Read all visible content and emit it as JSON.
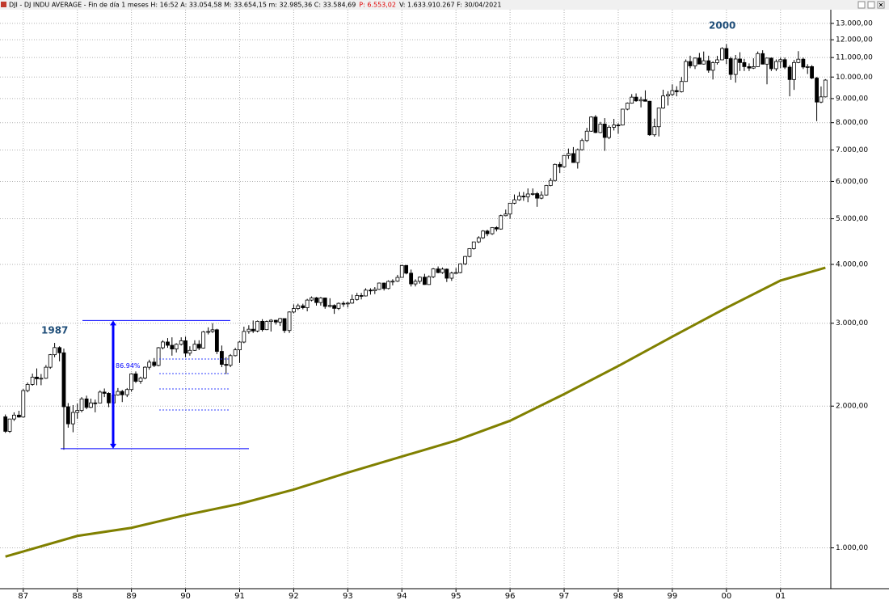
{
  "header": {
    "info": "DJI - DJ INDU AVERAGE - Fin de día 1 meses H: 16:52 A: 33.054,58 M: 33.654,15 m: 32.985,36 C: 33.584,69",
    "change": "P: 6.553,02",
    "extra": "V: 1.633.910.267 F: 30/04/2021"
  },
  "chart_data": {
    "type": "candlestick",
    "log_scale": true,
    "grid": true,
    "up_color": "#ffffff",
    "down_color": "#000000",
    "xlim": [
      1986.57,
      2001.93
    ],
    "ylim": [
      819,
      13900
    ],
    "xticks": [
      {
        "value": 1987,
        "label": "87"
      },
      {
        "value": 1988,
        "label": "88"
      },
      {
        "value": 1989,
        "label": "89"
      },
      {
        "value": 1990,
        "label": "90"
      },
      {
        "value": 1991,
        "label": "91"
      },
      {
        "value": 1992,
        "label": "92"
      },
      {
        "value": 1993,
        "label": "93"
      },
      {
        "value": 1994,
        "label": "94"
      },
      {
        "value": 1995,
        "label": "95"
      },
      {
        "value": 1996,
        "label": "96"
      },
      {
        "value": 1997,
        "label": "97"
      },
      {
        "value": 1998,
        "label": "98"
      },
      {
        "value": 1999,
        "label": "99"
      },
      {
        "value": 2000,
        "label": "00"
      },
      {
        "value": 2001,
        "label": "01"
      }
    ],
    "yticks": [
      {
        "value": 1000,
        "label": "1.000,00"
      },
      {
        "value": 2000,
        "label": "2.000,00"
      },
      {
        "value": 3000,
        "label": "3.000,00"
      },
      {
        "value": 4000,
        "label": "4.000,00"
      },
      {
        "value": 5000,
        "label": "5.000,00"
      },
      {
        "value": 6000,
        "label": "6.000,00"
      },
      {
        "value": 7000,
        "label": "7.000,00"
      },
      {
        "value": 8000,
        "label": "8.000,00"
      },
      {
        "value": 9000,
        "label": "9.000,00"
      },
      {
        "value": 10000,
        "label": "10.000,00"
      },
      {
        "value": 11000,
        "label": "11.000,00"
      },
      {
        "value": 12000,
        "label": "12.000,00"
      },
      {
        "value": 13000,
        "label": "13.000,00"
      }
    ],
    "x": [
      1986.67,
      1986.75,
      1986.83,
      1986.92,
      1987,
      1987.08,
      1987.17,
      1987.25,
      1987.33,
      1987.42,
      1987.5,
      1987.58,
      1987.67,
      1987.75,
      1987.83,
      1987.92,
      1988,
      1988.08,
      1988.17,
      1988.25,
      1988.33,
      1988.42,
      1988.5,
      1988.58,
      1988.67,
      1988.75,
      1988.83,
      1988.92,
      1989,
      1989.08,
      1989.17,
      1989.25,
      1989.33,
      1989.42,
      1989.5,
      1989.58,
      1989.67,
      1989.75,
      1989.83,
      1989.92,
      1990,
      1990.08,
      1990.17,
      1990.25,
      1990.33,
      1990.42,
      1990.5,
      1990.58,
      1990.67,
      1990.75,
      1990.83,
      1990.92,
      1991,
      1991.08,
      1991.17,
      1991.25,
      1991.33,
      1991.42,
      1991.5,
      1991.58,
      1991.67,
      1991.75,
      1991.83,
      1991.92,
      1992,
      1992.08,
      1992.17,
      1992.25,
      1992.33,
      1992.42,
      1992.5,
      1992.58,
      1992.67,
      1992.75,
      1992.83,
      1992.92,
      1993,
      1993.08,
      1993.17,
      1993.25,
      1993.33,
      1993.42,
      1993.5,
      1993.58,
      1993.67,
      1993.75,
      1993.83,
      1993.92,
      1994,
      1994.08,
      1994.17,
      1994.25,
      1994.33,
      1994.42,
      1994.5,
      1994.58,
      1994.67,
      1994.75,
      1994.83,
      1994.92,
      1995,
      1995.08,
      1995.17,
      1995.25,
      1995.33,
      1995.42,
      1995.5,
      1995.58,
      1995.67,
      1995.75,
      1995.83,
      1995.92,
      1996,
      1996.08,
      1996.17,
      1996.25,
      1996.33,
      1996.42,
      1996.5,
      1996.58,
      1996.67,
      1996.75,
      1996.83,
      1996.92,
      1997,
      1997.08,
      1997.17,
      1997.25,
      1997.33,
      1997.42,
      1997.5,
      1997.58,
      1997.67,
      1997.75,
      1997.83,
      1997.92,
      1998,
      1998.08,
      1998.17,
      1998.25,
      1998.33,
      1998.42,
      1998.5,
      1998.58,
      1998.67,
      1998.75,
      1998.83,
      1998.92,
      1999,
      1999.08,
      1999.17,
      1999.25,
      1999.33,
      1999.42,
      1999.5,
      1999.58,
      1999.67,
      1999.75,
      1999.83,
      1999.92,
      2000,
      2000.08,
      2000.17,
      2000.25,
      2000.33,
      2000.42,
      2000.5,
      2000.58,
      2000.67,
      2000.75,
      2000.83,
      2000.92,
      2001,
      2001.08,
      2001.17,
      2001.25,
      2001.33,
      2001.42,
      2001.5,
      2001.58,
      2001.67,
      2001.75,
      2001.83
    ],
    "open": [
      1898,
      1768,
      1878,
      1914,
      1896,
      2158,
      2224,
      2305,
      2286,
      2292,
      2419,
      2572,
      2663,
      2596,
      1994,
      1834,
      1939,
      1958,
      2072,
      1988,
      2032,
      2031,
      2142,
      2129,
      2032,
      2112,
      2149,
      2114,
      2169,
      2342,
      2258,
      2294,
      2419,
      2480,
      2440,
      2661,
      2737,
      2693,
      2645,
      2706,
      2753,
      2591,
      2627,
      2707,
      2657,
      2877,
      2881,
      2905,
      2614,
      2453,
      2442,
      2560,
      2634,
      2736,
      2882,
      2913,
      2888,
      3028,
      2907,
      3025,
      3044,
      3017,
      3069,
      2895,
      3169,
      3223,
      3267,
      3236,
      3359,
      3397,
      3319,
      3394,
      3257,
      3272,
      3226,
      3306,
      3301,
      3310,
      3370,
      3435,
      3428,
      3527,
      3516,
      3540,
      3651,
      3555,
      3681,
      3684,
      3754,
      3978,
      3832,
      3636,
      3682,
      3758,
      3625,
      3765,
      3913,
      3843,
      3908,
      3739,
      3834,
      3843,
      4011,
      4158,
      4321,
      4465,
      4556,
      4708,
      4647,
      4789,
      4756,
      5075,
      5117,
      5395,
      5486,
      5587,
      5569,
      5643,
      5655,
      5529,
      5616,
      5882,
      6029,
      6522,
      6448,
      6813,
      6878,
      6584,
      7009,
      7331,
      7673,
      8223,
      7622,
      7945,
      7442,
      7823,
      7908,
      7907,
      8546,
      8800,
      9063,
      8900,
      8952,
      8883,
      7539,
      7843,
      8592,
      9117,
      9181,
      9359,
      9307,
      9786,
      10789,
      10560,
      10971,
      10655,
      10829,
      10337,
      10729,
      10878,
      11497,
      10941,
      10128,
      10922,
      10734,
      10522,
      10448,
      10522,
      11215,
      10651,
      10971,
      10415,
      10788,
      10887,
      10495,
      9879,
      10735,
      10912,
      10502,
      10523,
      9950,
      8848,
      9075
    ],
    "high": [
      1920,
      1880,
      1940,
      1955,
      2175,
      2245,
      2345,
      2405,
      2340,
      2445,
      2580,
      2725,
      2680,
      2650,
      2030,
      2010,
      2025,
      2090,
      2105,
      2075,
      2065,
      2160,
      2180,
      2140,
      2125,
      2185,
      2165,
      2185,
      2350,
      2370,
      2310,
      2430,
      2510,
      2530,
      2670,
      2760,
      2790,
      2800,
      2720,
      2800,
      2810,
      2680,
      2760,
      2760,
      2890,
      2940,
      3000,
      2920,
      2690,
      2540,
      2580,
      2660,
      2750,
      2950,
      2970,
      3040,
      3040,
      3060,
      3040,
      3060,
      3050,
      3080,
      3070,
      3180,
      3290,
      3300,
      3300,
      3380,
      3420,
      3410,
      3410,
      3400,
      3390,
      3290,
      3320,
      3340,
      3330,
      3450,
      3480,
      3480,
      3560,
      3560,
      3580,
      3660,
      3660,
      3700,
      3720,
      3800,
      3990,
      3990,
      3900,
      3720,
      3770,
      3820,
      3790,
      3930,
      3960,
      3940,
      3920,
      3860,
      3930,
      4020,
      4170,
      4330,
      4470,
      4590,
      4730,
      4740,
      4800,
      4820,
      5100,
      5230,
      5400,
      5630,
      5700,
      5700,
      5800,
      5800,
      5700,
      5720,
      5900,
      6100,
      6550,
      6600,
      6830,
      7050,
      7100,
      7050,
      7400,
      7800,
      8250,
      8300,
      8030,
      8180,
      7900,
      8150,
      7980,
      8560,
      8830,
      9200,
      9230,
      9080,
      9370,
      8900,
      8160,
      8600,
      9400,
      9330,
      9650,
      9560,
      10000,
      10900,
      11100,
      11000,
      11250,
      11330,
      11100,
      10800,
      11090,
      11570,
      11750,
      11040,
      11140,
      11290,
      10930,
      10690,
      10960,
      11330,
      11400,
      10990,
      11000,
      10900,
      11000,
      11000,
      10600,
      10870,
      11350,
      11000,
      10650,
      10600,
      10000,
      9550,
      9900
    ],
    "low": [
      1755,
      1755,
      1860,
      1890,
      1890,
      2140,
      2210,
      2215,
      2215,
      2285,
      2400,
      2540,
      2490,
      1616,
      1800,
      1760,
      1880,
      1940,
      1970,
      1980,
      1940,
      2030,
      2090,
      1990,
      2020,
      2105,
      2040,
      2090,
      2145,
      2240,
      2230,
      2280,
      2390,
      2420,
      2430,
      2640,
      2660,
      2560,
      2600,
      2690,
      2540,
      2560,
      2620,
      2630,
      2650,
      2840,
      2860,
      2580,
      2420,
      2340,
      2420,
      2550,
      2470,
      2720,
      2850,
      2860,
      2870,
      2880,
      2900,
      2880,
      2980,
      2960,
      2860,
      2860,
      3150,
      3200,
      3210,
      3180,
      3340,
      3270,
      3270,
      3220,
      3240,
      3140,
      3200,
      3250,
      3240,
      3300,
      3350,
      3370,
      3420,
      3450,
      3460,
      3530,
      3520,
      3540,
      3610,
      3670,
      3750,
      3810,
      3590,
      3590,
      3640,
      3620,
      3620,
      3740,
      3830,
      3820,
      3670,
      3690,
      3820,
      3830,
      3990,
      4140,
      4300,
      4440,
      4530,
      4590,
      4620,
      4700,
      4740,
      5060,
      5000,
      5370,
      5460,
      5460,
      5420,
      5600,
      5300,
      5500,
      5600,
      5860,
      6000,
      6250,
      6420,
      6700,
      6580,
      6390,
      6980,
      7280,
      7650,
      7600,
      7600,
      6970,
      7380,
      7700,
      7580,
      7890,
      8500,
      8780,
      8860,
      8620,
      8870,
      7500,
      7470,
      7480,
      8560,
      8700,
      9110,
      9100,
      9270,
      9770,
      10440,
      10400,
      10650,
      10630,
      10210,
      9880,
      10630,
      10860,
      10650,
      9860,
      9730,
      10300,
      10300,
      10300,
      10400,
      10510,
      10640,
      9650,
      10300,
      10300,
      10450,
      10400,
      9100,
      9390,
      10700,
      10400,
      10150,
      9900,
      8060,
      8800,
      9050
    ],
    "close": [
      1768,
      1878,
      1914,
      1896,
      2158,
      2224,
      2305,
      2286,
      2292,
      2419,
      2572,
      2663,
      2596,
      1994,
      1834,
      1939,
      1958,
      2072,
      1988,
      2032,
      2031,
      2142,
      2129,
      2032,
      2112,
      2149,
      2114,
      2169,
      2342,
      2258,
      2294,
      2419,
      2480,
      2440,
      2661,
      2737,
      2693,
      2645,
      2706,
      2753,
      2591,
      2627,
      2707,
      2657,
      2877,
      2881,
      2905,
      2614,
      2453,
      2442,
      2560,
      2634,
      2736,
      2882,
      2913,
      2888,
      3028,
      2907,
      3025,
      3044,
      3017,
      3069,
      2895,
      3169,
      3223,
      3267,
      3236,
      3359,
      3397,
      3319,
      3394,
      3257,
      3272,
      3226,
      3306,
      3301,
      3310,
      3370,
      3435,
      3428,
      3527,
      3516,
      3540,
      3651,
      3555,
      3681,
      3684,
      3754,
      3978,
      3832,
      3636,
      3682,
      3758,
      3625,
      3765,
      3913,
      3843,
      3908,
      3739,
      3834,
      3843,
      4011,
      4158,
      4321,
      4465,
      4556,
      4708,
      4647,
      4789,
      4756,
      5075,
      5117,
      5395,
      5486,
      5587,
      5569,
      5643,
      5655,
      5529,
      5616,
      5882,
      6029,
      6522,
      6448,
      6813,
      6878,
      6584,
      7009,
      7331,
      7673,
      8223,
      7622,
      7945,
      7442,
      7823,
      7908,
      7907,
      8546,
      8800,
      9063,
      8900,
      8952,
      8883,
      7539,
      7843,
      8592,
      9117,
      9181,
      9359,
      9307,
      9786,
      10789,
      10560,
      10971,
      10655,
      10829,
      10337,
      10729,
      10878,
      11497,
      10941,
      10128,
      10922,
      10734,
      10522,
      10448,
      10522,
      11215,
      10651,
      10971,
      10415,
      10788,
      10887,
      10495,
      9879,
      10735,
      10912,
      10502,
      10523,
      9950,
      8848,
      9075,
      9852
    ],
    "ma": {
      "color": "#808000",
      "x": [
        1986.67,
        1988,
        1989,
        1990,
        1991,
        1992,
        1993,
        1994,
        1995,
        1996,
        1997,
        1998,
        1999,
        2000,
        2001,
        2001.83
      ],
      "values": [
        958,
        1060,
        1103,
        1174,
        1240,
        1330,
        1445,
        1563,
        1690,
        1862,
        2121,
        2433,
        2810,
        3235,
        3697,
        3935
      ]
    },
    "annotations": [
      "1987",
      "2000"
    ],
    "measure": {
      "label": "86.94%",
      "high": 3040,
      "low": 1624,
      "color": "#0000ff"
    }
  }
}
